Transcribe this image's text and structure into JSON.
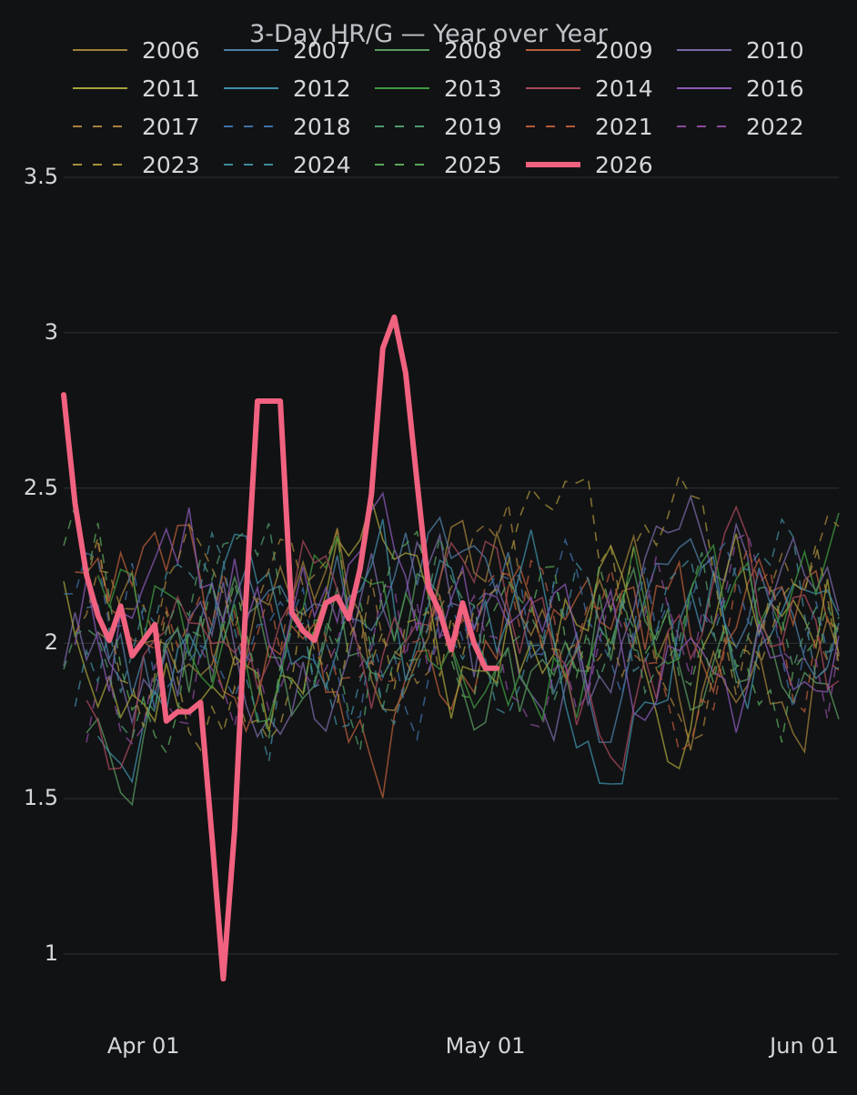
{
  "chart_data": {
    "type": "line",
    "title": "3-Day HR/G — Year over Year",
    "xlabel": "",
    "ylabel": "",
    "x_range": [
      "Mar 25",
      "Jun 01"
    ],
    "ylim": [
      0.8,
      3.85
    ],
    "y_ticks": [
      "1",
      "1.5",
      "2",
      "2.5",
      "3",
      "3.5"
    ],
    "x_ticks": [
      {
        "label": "Apr 01",
        "day": 7
      },
      {
        "label": "May 01",
        "day": 37
      },
      {
        "label": "Jun 01",
        "day": 68
      }
    ],
    "grid": true,
    "legend_position": "top",
    "highlight_series": {
      "name": "2026",
      "color": "#f0627f",
      "x_days": [
        0,
        1,
        2,
        3,
        4,
        5,
        6,
        7,
        8,
        9,
        10,
        11,
        12,
        13,
        14,
        15,
        16,
        17,
        18,
        19,
        20,
        21,
        22,
        23,
        24,
        25,
        26,
        27,
        28,
        29,
        30,
        31,
        32,
        33,
        34,
        35,
        36,
        37,
        38
      ],
      "values": [
        2.8,
        2.45,
        2.22,
        2.09,
        2.01,
        2.12,
        1.96,
        2.01,
        2.06,
        1.75,
        1.78,
        1.78,
        1.81,
        1.38,
        0.92,
        1.4,
        2.15,
        2.78,
        2.78,
        2.78,
        2.1,
        2.04,
        2.01,
        2.13,
        2.15,
        2.08,
        2.24,
        2.48,
        2.95,
        3.05,
        2.87,
        2.52,
        2.18,
        2.1,
        1.98,
        2.13,
        2.0,
        1.92,
        1.92
      ]
    },
    "background_series": [
      {
        "name": "2006",
        "color": "#a0803a",
        "dash": "solid"
      },
      {
        "name": "2007",
        "color": "#4f7fa6",
        "dash": "solid"
      },
      {
        "name": "2008",
        "color": "#5a9a60",
        "dash": "solid"
      },
      {
        "name": "2009",
        "color": "#b65f3a",
        "dash": "solid"
      },
      {
        "name": "2010",
        "color": "#7a6aa6",
        "dash": "solid"
      },
      {
        "name": "2011",
        "color": "#a6a23a",
        "dash": "solid"
      },
      {
        "name": "2012",
        "color": "#3f8fa6",
        "dash": "solid"
      },
      {
        "name": "2013",
        "color": "#3f9a3f",
        "dash": "solid"
      },
      {
        "name": "2014",
        "color": "#a64a5a",
        "dash": "solid"
      },
      {
        "name": "2016",
        "color": "#8a5ab6",
        "dash": "solid"
      },
      {
        "name": "2017",
        "color": "#a6803a",
        "dash": "dash"
      },
      {
        "name": "2018",
        "color": "#3f6fa6",
        "dash": "dash"
      },
      {
        "name": "2019",
        "color": "#4f9a6a",
        "dash": "dash"
      },
      {
        "name": "2021",
        "color": "#b6583a",
        "dash": "dash"
      },
      {
        "name": "2022",
        "color": "#8a4a9a",
        "dash": "dash"
      },
      {
        "name": "2023",
        "color": "#a6903a",
        "dash": "dash"
      },
      {
        "name": "2024",
        "color": "#3f8a9a",
        "dash": "dash"
      },
      {
        "name": "2025",
        "color": "#5aa65a",
        "dash": "dash"
      }
    ]
  },
  "theme": {
    "background": "#111214",
    "grid_color": "#2a2c30",
    "text_color": "#d4d6d9"
  }
}
